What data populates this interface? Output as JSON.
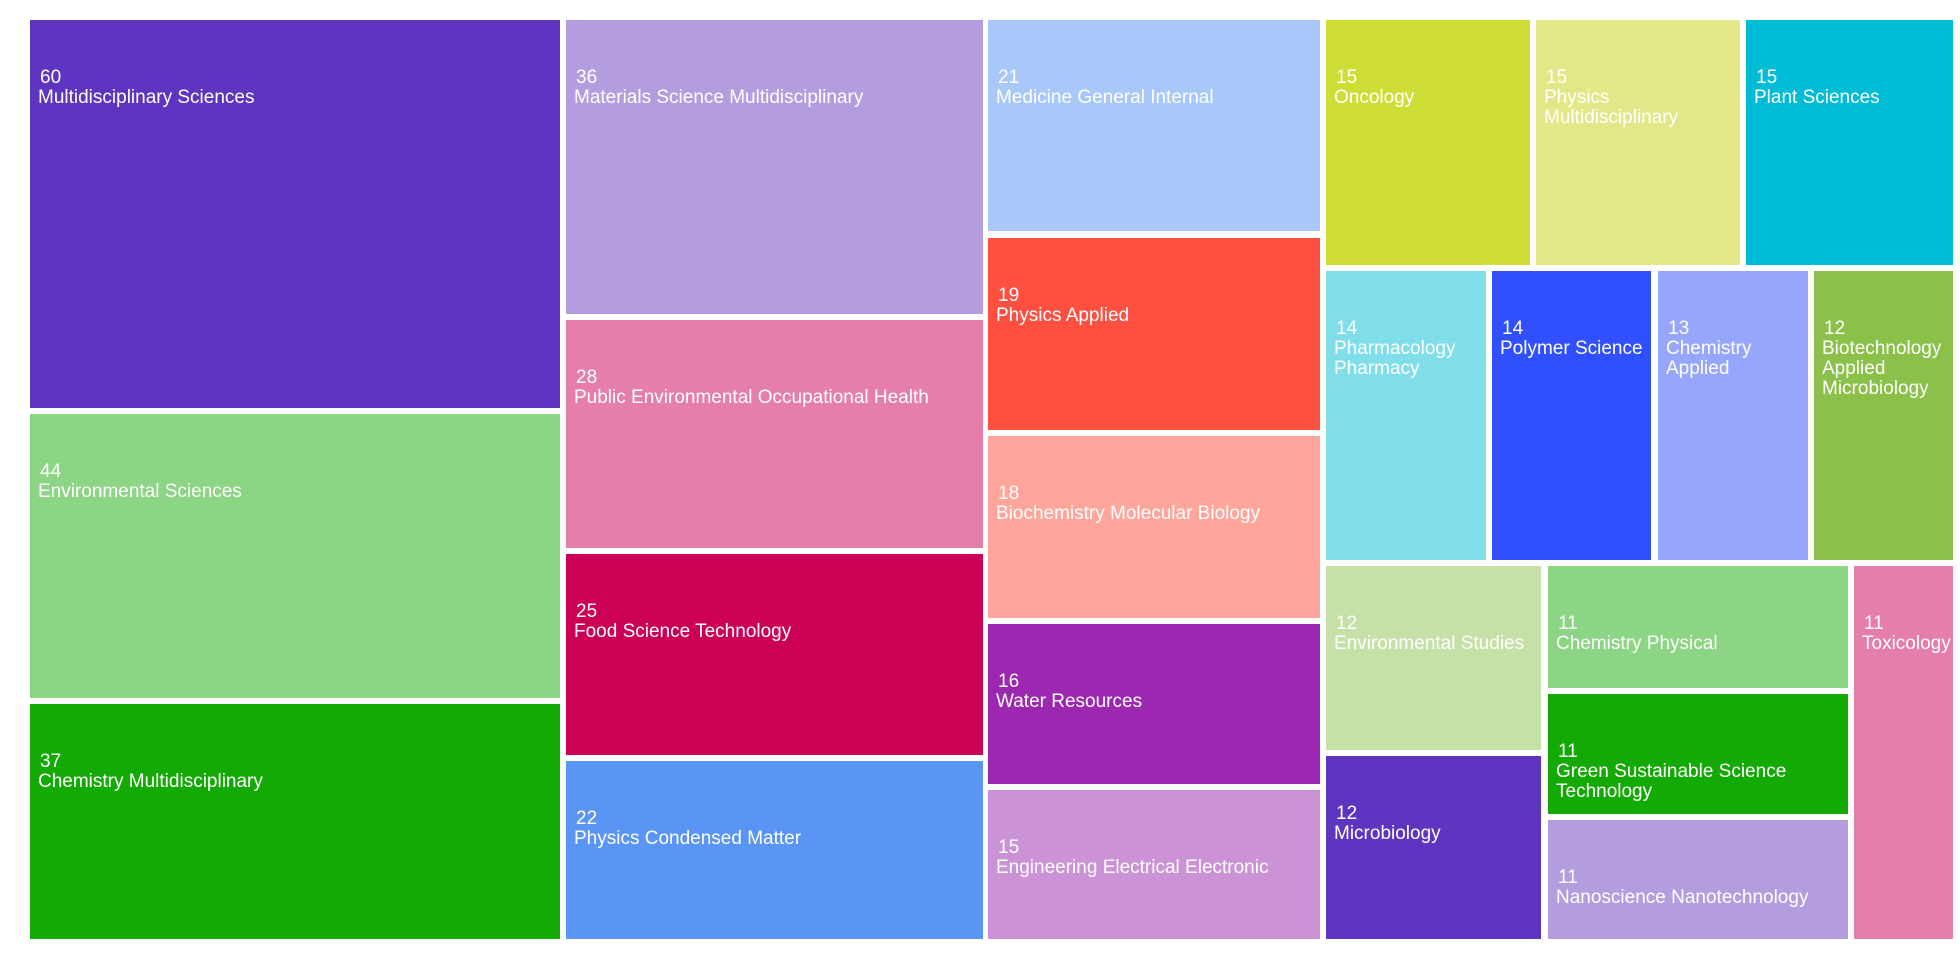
{
  "chart_data": {
    "type": "treemap",
    "title": "",
    "items": [
      {
        "label": "Multidisciplinary Sciences",
        "value": 60,
        "color": "#5e35c0"
      },
      {
        "label": "Environmental Sciences",
        "value": 44,
        "color": "#8bd584"
      },
      {
        "label": "Chemistry Multidisciplinary",
        "value": 37,
        "color": "#14aa05"
      },
      {
        "label": "Materials Science Multidisciplinary",
        "value": 36,
        "color": "#b39ddf"
      },
      {
        "label": "Public Environmental Occupational Health",
        "value": 28,
        "color": "#e57eaa"
      },
      {
        "label": "Food Science Technology",
        "value": 25,
        "color": "#cc0055"
      },
      {
        "label": "Physics Condensed Matter",
        "value": 22,
        "color": "#5a94f4"
      },
      {
        "label": "Medicine General Internal",
        "value": 21,
        "color": "#a8c8fa"
      },
      {
        "label": "Physics Applied",
        "value": 19,
        "color": "#ff4f40"
      },
      {
        "label": "Biochemistry Molecular Biology",
        "value": 18,
        "color": "#ffa59c"
      },
      {
        "label": "Water Resources",
        "value": 16,
        "color": "#9c27b0"
      },
      {
        "label": "Engineering Electrical Electronic",
        "value": 15,
        "color": "#cb93d6"
      },
      {
        "label": "Oncology",
        "value": 15,
        "color": "#cfdd37"
      },
      {
        "label": "Physics Multidisciplinary",
        "value": 15,
        "color": "#e2e888"
      },
      {
        "label": "Plant Sciences",
        "value": 15,
        "color": "#00bcd6"
      },
      {
        "label": "Pharmacology Pharmacy",
        "value": 14,
        "color": "#80deea"
      },
      {
        "label": "Polymer Science",
        "value": 14,
        "color": "#304ffe"
      },
      {
        "label": "Chemistry Applied",
        "value": 13,
        "color": "#97a6fd"
      },
      {
        "label": "Biotechnology Applied Microbiology",
        "value": 12,
        "color": "#8bc14a"
      },
      {
        "label": "Environmental Studies",
        "value": 12,
        "color": "#c6e1a7"
      },
      {
        "label": "Microbiology",
        "value": 12,
        "color": "#5e35c0"
      },
      {
        "label": "Chemistry Physical",
        "value": 11,
        "color": "#8bd584"
      },
      {
        "label": "Green Sustainable Science Technology",
        "value": 11,
        "color": "#14aa05"
      },
      {
        "label": "Nanoscience Nanotechnology",
        "value": 11,
        "color": "#b39ddf"
      },
      {
        "label": "Toxicology",
        "value": 11,
        "color": "#e57eaa"
      }
    ]
  }
}
